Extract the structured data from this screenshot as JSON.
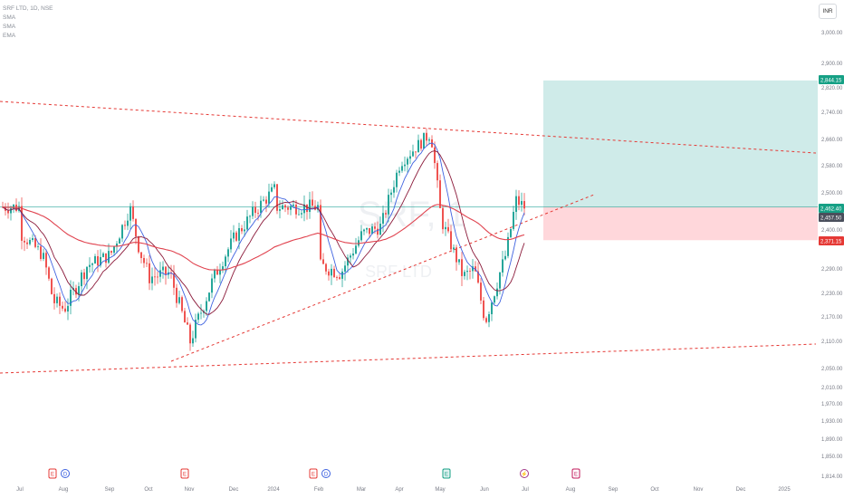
{
  "header": {
    "symbol_line": "SRF LTD, 1D, NSE",
    "indicators": [
      "SMA",
      "SMA",
      "EMA"
    ]
  },
  "currency_button": "INR",
  "watermark": {
    "line1": "SRF, 1",
    "line2": "SRF LTD"
  },
  "chart_data": {
    "type": "line",
    "title": "SRF LTD, 1D, NSE",
    "xlabel": "",
    "ylabel": "",
    "ylim": [
      1814,
      3040
    ],
    "grid": false,
    "x_ticks": [
      "Jul",
      "Aug",
      "Sep",
      "Oct",
      "Nov",
      "Dec",
      "2024",
      "Feb",
      "Mar",
      "Apr",
      "May",
      "Jun",
      "Jul",
      "Aug",
      "Sep",
      "Oct",
      "Nov",
      "Dec",
      "2025"
    ],
    "y_ticks": [
      "3,000.00",
      "2,900.00",
      "2,820.00",
      "2,740.00",
      "2,660.00",
      "2,580.00",
      "2,500.00",
      "2,400.00",
      "2,290.00",
      "2,230.00",
      "2,170.00",
      "2,110.00",
      "2,050.00",
      "2,010.00",
      "1,970.00",
      "1,930.00",
      "1,890.00",
      "1,850.00",
      "1,814.00"
    ],
    "price_close_path": [
      [
        "Jul",
        2390
      ],
      [
        "mid-Jul",
        2330
      ],
      [
        "late-Jul",
        2210
      ],
      [
        "Aug",
        2190
      ],
      [
        "mid-Aug",
        2300
      ],
      [
        "Sep",
        2330
      ],
      [
        "mid-Sep",
        2460
      ],
      [
        "late-Sep",
        2340
      ],
      [
        "Oct",
        2270
      ],
      [
        "mid-Oct",
        2280
      ],
      [
        "Nov",
        2110
      ],
      [
        "mid-Nov",
        2260
      ],
      [
        "Dec",
        2380
      ],
      [
        "mid-Dec",
        2450
      ],
      [
        "2024",
        2510
      ],
      [
        "mid-Jan",
        2400
      ],
      [
        "Feb",
        2300
      ],
      [
        "mid-Feb",
        2280
      ],
      [
        "Mar",
        2390
      ],
      [
        "mid-Mar",
        2410
      ],
      [
        "Apr",
        2590
      ],
      [
        "mid-Apr",
        2650
      ],
      [
        "late-Apr",
        2680
      ],
      [
        "May",
        2430
      ],
      [
        "mid-May",
        2270
      ],
      [
        "late-May",
        2290
      ],
      [
        "Jun",
        2160
      ],
      [
        "mid-Jun",
        2330
      ],
      [
        "late-Jun",
        2480
      ],
      [
        "Jul",
        2462
      ]
    ],
    "series": [
      {
        "name": "SMA",
        "color": "#3f63e0"
      },
      {
        "name": "SMA",
        "color": "#8b1a3a"
      },
      {
        "name": "EMA",
        "color": "#e0434f"
      }
    ],
    "price_labels": [
      {
        "value": "2,844.15",
        "color": "#16a085"
      },
      {
        "value": "2,462.40",
        "color": "#16a085"
      },
      {
        "value": "2,457.50",
        "color": "#4a4f5c"
      },
      {
        "value": "2,371.15",
        "color": "#e53935"
      }
    ],
    "long_position": {
      "target": 2844.15,
      "entry": 2462.4,
      "stop": 2371.15
    },
    "trendlines": [
      {
        "name": "upper-resistance",
        "from": [
          "Jun",
          2870
        ],
        "to": [
          "2025",
          2570
        ]
      },
      {
        "name": "lower-support",
        "from": [
          "Jun",
          2050
        ],
        "to": [
          "2025",
          2120
        ]
      },
      {
        "name": "rising-support",
        "from": [
          "Nov",
          2100
        ],
        "to": [
          "Jul",
          2500
        ]
      }
    ],
    "events": [
      {
        "label": "E",
        "type": "earnings",
        "color": "#e53935"
      },
      {
        "label": "D",
        "type": "dividend",
        "color": "#3f63e0"
      },
      {
        "label": "E",
        "type": "earnings",
        "color": "#e53935"
      },
      {
        "label": "E",
        "type": "earnings",
        "color": "#e53935"
      },
      {
        "label": "D",
        "type": "dividend",
        "color": "#3f63e0"
      },
      {
        "label": "E",
        "type": "earnings",
        "color": "#16a085"
      },
      {
        "label": "⚡",
        "type": "split",
        "color": "#a33b8a"
      },
      {
        "label": "E",
        "type": "earnings",
        "color": "#c2185b"
      }
    ]
  }
}
